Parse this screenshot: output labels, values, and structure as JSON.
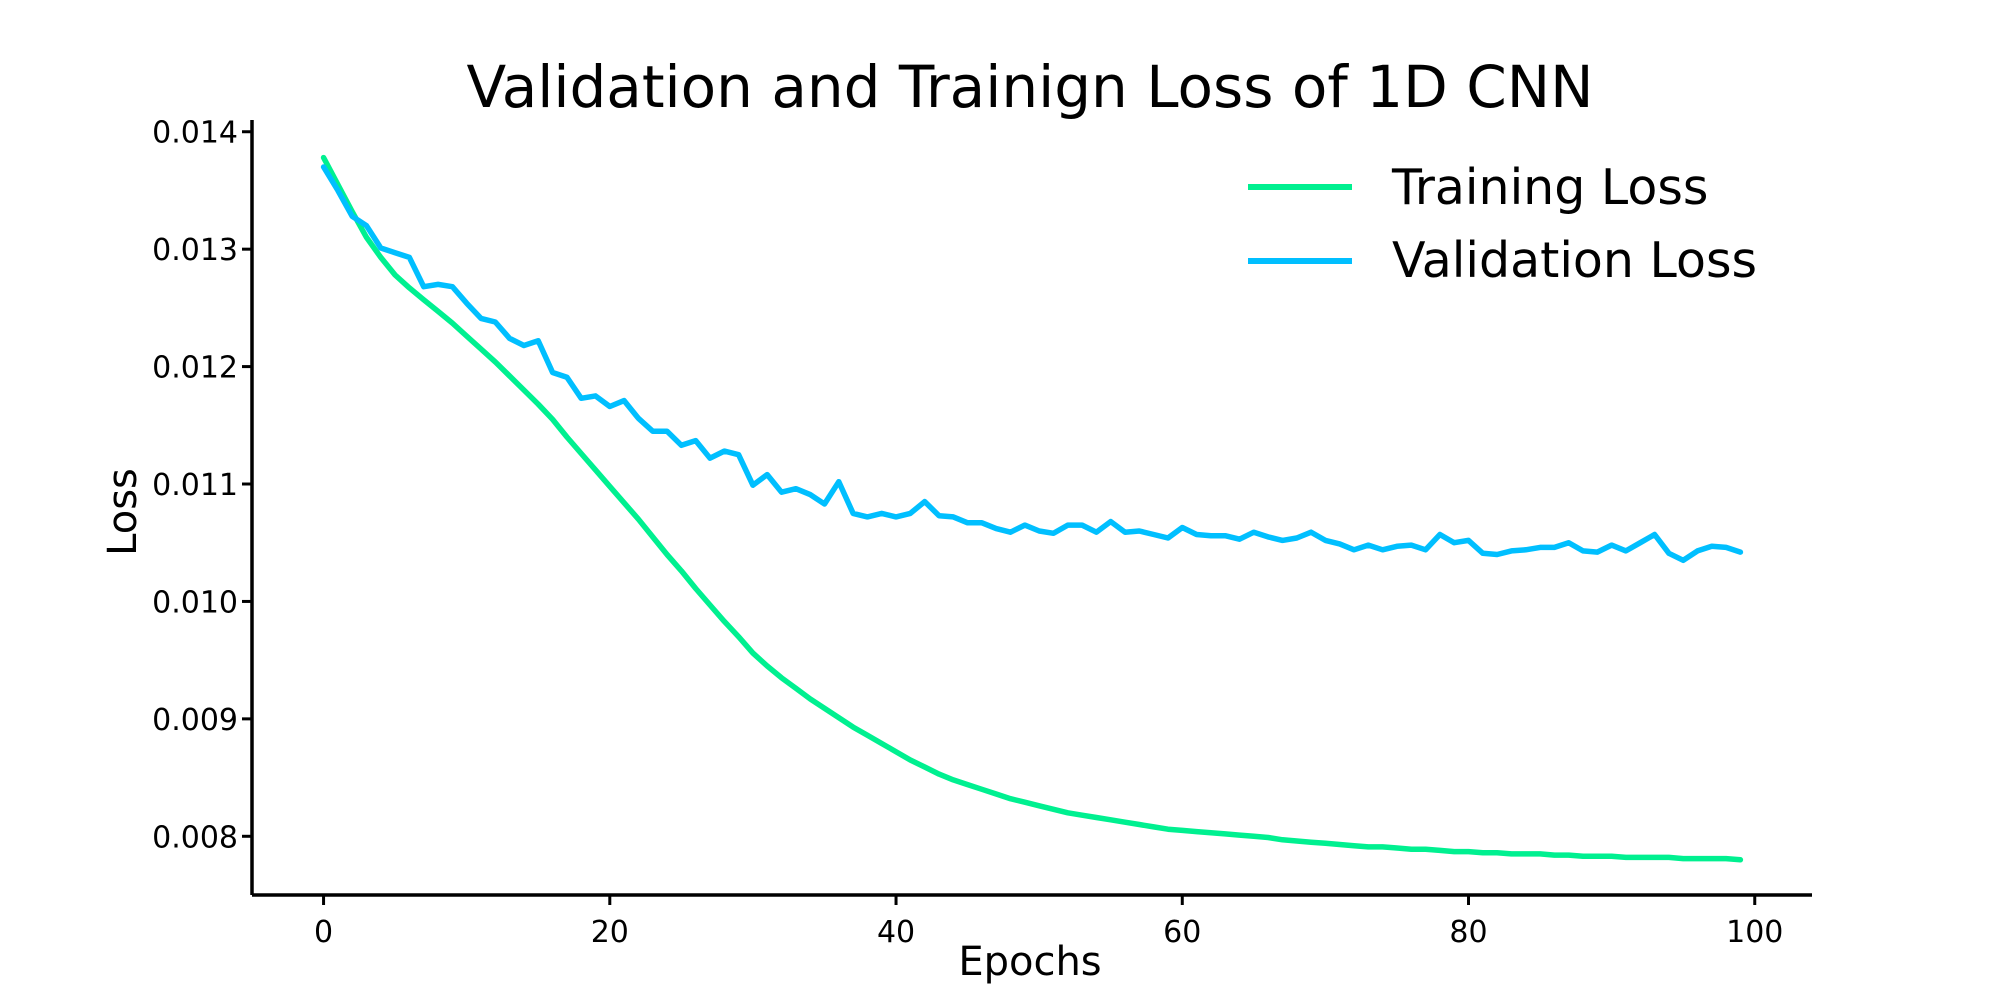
{
  "chart_data": {
    "type": "line",
    "title": "Validation and Trainign Loss of 1D CNN",
    "xlabel": "Epochs",
    "ylabel": "Loss",
    "xlim": [
      -5,
      104
    ],
    "ylim": [
      0.0075,
      0.0141
    ],
    "x_ticks": [
      0,
      20,
      40,
      60,
      80,
      100
    ],
    "y_ticks": [
      0.008,
      0.009,
      0.01,
      0.011,
      0.012,
      0.013,
      0.014
    ],
    "x_tick_labels": [
      "0",
      "20",
      "40",
      "60",
      "80",
      "100"
    ],
    "y_tick_labels": [
      "0.008",
      "0.009",
      "0.010",
      "0.011",
      "0.012",
      "0.013",
      "0.014"
    ],
    "grid": false,
    "legend_position": "top-right",
    "series": [
      {
        "name": "Training Loss",
        "color": "#00f090",
        "values": [
          0.01378,
          0.01355,
          0.01332,
          0.0131,
          0.01293,
          0.01278,
          0.01267,
          0.01257,
          0.01247,
          0.01237,
          0.01226,
          0.01215,
          0.01204,
          0.01192,
          0.0118,
          0.01168,
          0.01155,
          0.0114,
          0.01126,
          0.01112,
          0.01098,
          0.01084,
          0.0107,
          0.01055,
          0.0104,
          0.01026,
          0.01011,
          0.00997,
          0.00983,
          0.0097,
          0.00956,
          0.00945,
          0.00935,
          0.00926,
          0.00917,
          0.00909,
          0.00901,
          0.00893,
          0.00886,
          0.00879,
          0.00872,
          0.00865,
          0.00859,
          0.00853,
          0.00848,
          0.00844,
          0.0084,
          0.00836,
          0.00832,
          0.00829,
          0.00826,
          0.00823,
          0.0082,
          0.00818,
          0.00816,
          0.00814,
          0.00812,
          0.0081,
          0.00808,
          0.00806,
          0.00805,
          0.00804,
          0.00803,
          0.00802,
          0.00801,
          0.008,
          0.00799,
          0.00797,
          0.00796,
          0.00795,
          0.00794,
          0.00793,
          0.00792,
          0.00791,
          0.00791,
          0.0079,
          0.00789,
          0.00789,
          0.00788,
          0.00787,
          0.00787,
          0.00786,
          0.00786,
          0.00785,
          0.00785,
          0.00785,
          0.00784,
          0.00784,
          0.00783,
          0.00783,
          0.00783,
          0.00782,
          0.00782,
          0.00782,
          0.00782,
          0.00781,
          0.00781,
          0.00781,
          0.00781,
          0.0078
        ]
      },
      {
        "name": "Validation Loss",
        "color": "#00bfff",
        "values": [
          0.0137,
          0.0135,
          0.01328,
          0.0132,
          0.01301,
          0.01297,
          0.01293,
          0.01268,
          0.0127,
          0.01268,
          0.01254,
          0.01241,
          0.01238,
          0.01224,
          0.01218,
          0.01222,
          0.01195,
          0.01191,
          0.01173,
          0.01175,
          0.01166,
          0.01171,
          0.01156,
          0.01145,
          0.01145,
          0.01133,
          0.01137,
          0.01122,
          0.01128,
          0.01125,
          0.01099,
          0.01108,
          0.01093,
          0.01096,
          0.01091,
          0.01083,
          0.01102,
          0.01075,
          0.01072,
          0.01075,
          0.01072,
          0.01075,
          0.01085,
          0.01073,
          0.01072,
          0.01067,
          0.01067,
          0.01062,
          0.01059,
          0.01065,
          0.0106,
          0.01058,
          0.01065,
          0.01065,
          0.01059,
          0.01068,
          0.01059,
          0.0106,
          0.01057,
          0.01054,
          0.01063,
          0.01057,
          0.01056,
          0.01056,
          0.01053,
          0.01059,
          0.01055,
          0.01052,
          0.01054,
          0.01059,
          0.01052,
          0.01049,
          0.01044,
          0.01048,
          0.01044,
          0.01047,
          0.01048,
          0.01044,
          0.01057,
          0.0105,
          0.01052,
          0.01041,
          0.0104,
          0.01043,
          0.01044,
          0.01046,
          0.01046,
          0.0105,
          0.01043,
          0.01042,
          0.01048,
          0.01043,
          0.0105,
          0.01057,
          0.01041,
          0.01035,
          0.01043,
          0.01047,
          0.01046,
          0.01042
        ]
      }
    ]
  }
}
